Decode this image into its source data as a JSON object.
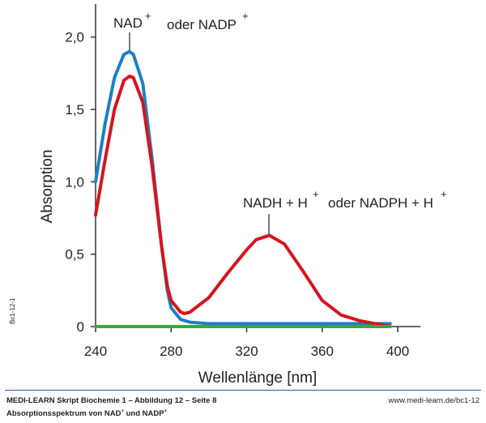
{
  "chart_data": {
    "type": "line",
    "xlabel": "Wellenlänge [nm]",
    "ylabel": "Absorption",
    "xlim": [
      240,
      412
    ],
    "ylim": [
      0,
      2.2
    ],
    "xticks": [
      240,
      280,
      320,
      360,
      400
    ],
    "yticks": [
      0,
      {
        "value": 0.5,
        "label": "0,5"
      },
      {
        "value": 1.0,
        "label": "1,0"
      },
      {
        "value": 1.5,
        "label": "1,5"
      },
      {
        "value": 2.0,
        "label": "2,0"
      }
    ],
    "annotations": [
      [
        "NAD",
        "+",
        "oder NADP",
        "+"
      ],
      [
        "NADH + H",
        "+",
        "oder NADPH + H",
        "+"
      ]
    ],
    "series": [
      {
        "color": "#1e7fc4",
        "x": [
          240,
          245,
          250,
          255,
          258,
          260,
          265,
          270,
          275,
          278,
          280,
          285,
          290,
          300,
          320,
          360,
          396
        ],
        "values": [
          1.0,
          1.4,
          1.72,
          1.88,
          1.9,
          1.88,
          1.68,
          1.15,
          0.55,
          0.25,
          0.13,
          0.05,
          0.03,
          0.02,
          0.02,
          0.02,
          0.02
        ]
      },
      {
        "color": "#d7141e",
        "x": [
          240,
          245,
          250,
          255,
          258,
          260,
          265,
          270,
          275,
          278,
          280,
          285,
          287,
          290,
          300,
          310,
          320,
          325,
          332,
          340,
          350,
          360,
          370,
          380,
          390,
          396
        ],
        "values": [
          0.77,
          1.15,
          1.5,
          1.7,
          1.73,
          1.72,
          1.55,
          1.1,
          0.55,
          0.28,
          0.18,
          0.1,
          0.09,
          0.1,
          0.2,
          0.37,
          0.53,
          0.6,
          0.63,
          0.57,
          0.38,
          0.18,
          0.08,
          0.04,
          0.015,
          0
        ]
      },
      {
        "color": "#3aa935",
        "x": [
          240,
          396
        ],
        "values": [
          0,
          0
        ]
      }
    ]
  },
  "footer": {
    "left": "MEDI-LEARN Skript Biochemie 1 – Abbildung 12 – Seite 8",
    "right": "www.medi-learn.de/bc1-12",
    "caption": [
      "Absorptionsspektrum von NAD",
      "+",
      " und NADP",
      "+"
    ],
    "side": "Bc1-12-1"
  }
}
